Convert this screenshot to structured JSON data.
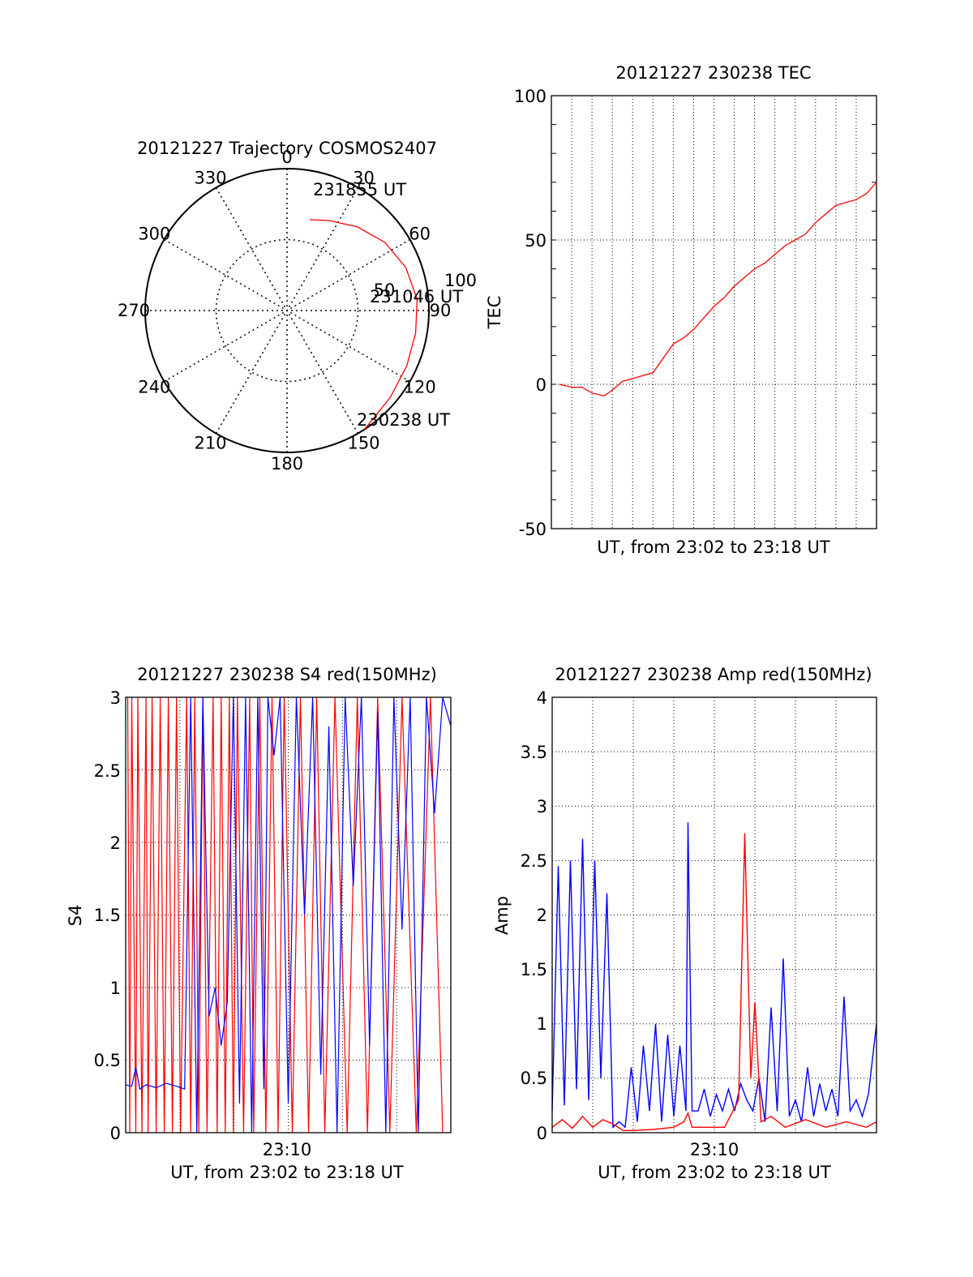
{
  "chart_data": [
    {
      "type": "polar",
      "title": "20121227 Trajectory COSMOS2407",
      "angle_labels": [
        "0",
        "30",
        "60",
        "90",
        "120",
        "150",
        "180",
        "210",
        "240",
        "270",
        "300",
        "330"
      ],
      "radius_labels": [
        "50",
        "100"
      ],
      "trajectory": [
        {
          "az": 14,
          "r": 66
        },
        {
          "az": 25,
          "r": 70
        },
        {
          "az": 40,
          "r": 77
        },
        {
          "az": 55,
          "r": 84
        },
        {
          "az": 70,
          "r": 89
        },
        {
          "az": 85,
          "r": 92
        },
        {
          "az": 100,
          "r": 92
        },
        {
          "az": 115,
          "r": 93
        },
        {
          "az": 130,
          "r": 95
        },
        {
          "az": 140,
          "r": 97
        },
        {
          "az": 147,
          "r": 100
        }
      ],
      "annotations": [
        {
          "text": "231855 UT",
          "az": 14,
          "r": 66
        },
        {
          "text": "231046 UT",
          "az": 82,
          "r": 92
        },
        {
          "text": "230238 UT",
          "az": 147,
          "r": 100
        }
      ],
      "line_color": "#ff0000"
    },
    {
      "type": "line",
      "title": "20121227 230238 TEC",
      "xlabel": "UT, from 23:02 to 23:18 UT",
      "ylabel": "TEC",
      "xlim": [
        0,
        16
      ],
      "ylim": [
        -50,
        100
      ],
      "yticks": [
        "100",
        "50",
        "0",
        "-50"
      ],
      "series": [
        {
          "color": "#ff0000",
          "x": [
            0.4,
            1.0,
            1.5,
            2.0,
            2.6,
            3.0,
            3.5,
            4.0,
            4.5,
            5.0,
            5.5,
            6.0,
            6.5,
            7.0,
            7.5,
            8.0,
            8.5,
            9.0,
            9.5,
            10.0,
            10.5,
            11.0,
            11.5,
            12.0,
            12.5,
            13.0,
            13.5,
            14.0,
            14.5,
            15.0,
            15.5,
            16.0
          ],
          "y": [
            0,
            -1,
            -1,
            -3,
            -4,
            -2,
            1,
            2,
            3,
            4,
            9,
            14,
            16,
            19,
            23,
            27,
            30,
            34,
            37,
            40,
            42,
            45,
            48,
            50,
            52,
            56,
            59,
            62,
            63,
            64,
            66,
            70
          ]
        }
      ]
    },
    {
      "type": "line",
      "title": "20121227 230238 S4 red(150MHz)",
      "xlabel": "UT, from 23:02 to 23:18 UT",
      "ylabel": "S4",
      "xlim": [
        0,
        16
      ],
      "ylim": [
        0,
        3
      ],
      "xtick_label": "23:10",
      "yticks": [
        "3",
        "2.5",
        "2",
        "1.5",
        "1",
        "0.5",
        "0"
      ],
      "series": [
        {
          "color": "#ff0000",
          "x": [
            0.1,
            0.2,
            0.3,
            0.5,
            0.6,
            0.8,
            1.0,
            1.1,
            1.3,
            1.5,
            1.7,
            1.9,
            2.1,
            2.3,
            2.5,
            2.7,
            3.0,
            3.2,
            3.4,
            3.6,
            3.8,
            4.0,
            4.3,
            4.5,
            4.7,
            4.9,
            5.1,
            5.3,
            5.5,
            5.8,
            6.1,
            6.3,
            6.6,
            6.9,
            7.2,
            7.5,
            7.8,
            8.2,
            8.6,
            9.0,
            9.4,
            9.8,
            10.3,
            10.9,
            11.4,
            11.9,
            12.4,
            13.0,
            13.6,
            14.3,
            15.0,
            15.6
          ],
          "y": [
            3,
            0,
            3,
            0,
            3,
            0,
            3,
            0,
            3,
            0,
            3,
            0,
            3,
            0,
            3,
            0,
            3,
            0,
            3,
            0,
            3,
            0,
            3,
            0,
            3,
            0,
            3,
            0,
            3,
            0,
            3,
            0,
            3,
            0,
            3,
            0,
            3,
            0,
            3,
            0,
            3,
            0,
            3,
            0,
            3,
            0,
            3,
            0,
            3,
            0,
            3,
            0
          ]
        },
        {
          "color": "#0000ff",
          "x": [
            0.0,
            0.3,
            0.5,
            0.7,
            1.0,
            1.5,
            2.0,
            2.5,
            2.9,
            3.2,
            3.5,
            3.8,
            4.1,
            4.4,
            4.7,
            5.0,
            5.3,
            5.6,
            5.9,
            6.2,
            6.5,
            6.8,
            7.0,
            7.3,
            7.6,
            8.0,
            8.4,
            8.8,
            9.2,
            9.6,
            10.0,
            10.4,
            10.8,
            11.2,
            11.6,
            12.0,
            12.4,
            12.8,
            13.2,
            13.6,
            14.0,
            14.4,
            14.8,
            15.2,
            15.6,
            16.0
          ],
          "y": [
            0.33,
            0.32,
            0.45,
            0.3,
            0.33,
            0.31,
            0.34,
            0.32,
            0.3,
            3.0,
            0.0,
            3.0,
            0.8,
            1.0,
            0.6,
            0.9,
            3.0,
            0.2,
            3.0,
            0.0,
            3.0,
            0.3,
            3.0,
            2.6,
            3.0,
            0.2,
            3.0,
            1.5,
            3.0,
            0.4,
            2.8,
            0.0,
            3.0,
            1.7,
            3.0,
            0.6,
            2.9,
            0.0,
            3.0,
            1.4,
            3.0,
            0.0,
            3.0,
            2.2,
            3.0,
            2.8
          ]
        }
      ]
    },
    {
      "type": "line",
      "title": "20121227 230238 Amp red(150MHz)",
      "xlabel": "UT, from 23:02 to 23:18 UT",
      "ylabel": "Amp",
      "xlim": [
        0,
        16
      ],
      "ylim": [
        0,
        4
      ],
      "xtick_label": "23:10",
      "yticks": [
        "4",
        "3.5",
        "3",
        "2.5",
        "2",
        "1.5",
        "1",
        "0.5",
        "0"
      ],
      "series": [
        {
          "color": "#0000ff",
          "x": [
            0.0,
            0.3,
            0.6,
            0.9,
            1.2,
            1.5,
            1.8,
            2.1,
            2.4,
            2.7,
            3.0,
            3.3,
            3.6,
            3.9,
            4.2,
            4.5,
            4.8,
            5.1,
            5.4,
            5.7,
            6.0,
            6.3,
            6.6,
            6.7,
            6.9,
            7.2,
            7.5,
            7.8,
            8.1,
            8.4,
            8.7,
            9.0,
            9.3,
            9.6,
            9.9,
            10.2,
            10.5,
            10.8,
            11.1,
            11.4,
            11.7,
            12.0,
            12.3,
            12.6,
            12.9,
            13.2,
            13.5,
            13.8,
            14.1,
            14.4,
            14.7,
            15.0,
            15.3,
            15.6,
            16.0
          ],
          "y": [
            0.2,
            2.45,
            0.25,
            2.5,
            0.4,
            2.7,
            0.3,
            2.5,
            0.5,
            2.2,
            0.05,
            0.1,
            0.05,
            0.6,
            0.1,
            0.8,
            0.2,
            1.0,
            0.1,
            0.9,
            0.15,
            0.8,
            0.2,
            2.85,
            0.2,
            0.2,
            0.4,
            0.15,
            0.35,
            0.2,
            0.4,
            0.2,
            0.45,
            0.3,
            0.2,
            0.5,
            0.1,
            1.15,
            0.2,
            1.6,
            0.15,
            0.3,
            0.1,
            0.6,
            0.15,
            0.45,
            0.2,
            0.4,
            0.15,
            1.25,
            0.2,
            0.3,
            0.15,
            0.35,
            1.0
          ]
        },
        {
          "color": "#ff0000",
          "x": [
            0.0,
            0.5,
            1.0,
            1.5,
            2.0,
            2.5,
            3.0,
            3.5,
            4.0,
            5.0,
            6.0,
            6.5,
            6.7,
            6.9,
            7.5,
            8.5,
            9.2,
            9.5,
            9.8,
            10.0,
            10.3,
            10.8,
            11.5,
            12.5,
            13.5,
            14.5,
            15.5,
            16.0
          ],
          "y": [
            0.05,
            0.12,
            0.04,
            0.15,
            0.05,
            0.12,
            0.08,
            0.02,
            0.02,
            0.03,
            0.05,
            0.1,
            0.18,
            0.05,
            0.05,
            0.05,
            0.3,
            2.75,
            0.5,
            1.2,
            0.1,
            0.15,
            0.05,
            0.12,
            0.05,
            0.1,
            0.05,
            0.1
          ]
        }
      ]
    }
  ]
}
